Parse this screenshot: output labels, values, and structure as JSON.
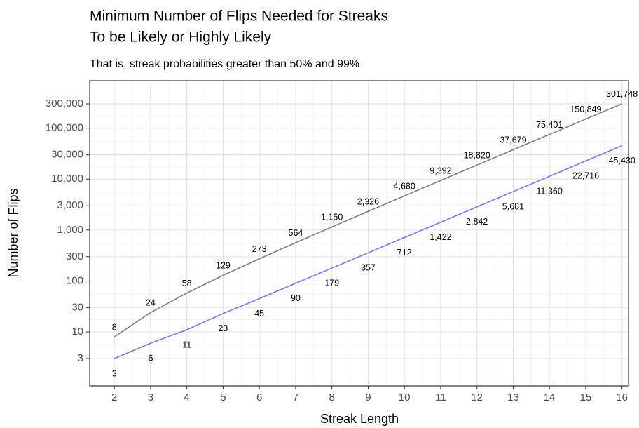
{
  "chart_data": {
    "type": "line",
    "title": [
      "Minimum Number of Flips Needed for Streaks",
      "To be Likely or Highly Likely"
    ],
    "subtitle": "That is, streak probabilities greater than 50% and 99%",
    "x_label": "Streak Length",
    "y_label": "Number of Flips",
    "x": [
      2,
      3,
      4,
      5,
      6,
      7,
      8,
      9,
      10,
      11,
      12,
      13,
      14,
      15,
      16
    ],
    "series": [
      {
        "color": "#7f7f7f",
        "label_side": "above",
        "values": [
          8,
          24,
          58,
          129,
          273,
          564,
          1150,
          2326,
          4680,
          9392,
          18820,
          37679,
          75401,
          150849,
          301748
        ],
        "value_labels": [
          "8",
          "24",
          "58",
          "129",
          "273",
          "564",
          "1,150",
          "2,326",
          "4,680",
          "9,392",
          "18,820",
          "37,679",
          "75,401",
          "150,849",
          "301,748"
        ]
      },
      {
        "color": "#7878f0",
        "label_side": "below",
        "values": [
          3,
          6,
          11,
          23,
          45,
          90,
          179,
          357,
          712,
          1422,
          2842,
          5681,
          11360,
          22716,
          45430
        ],
        "value_labels": [
          "3",
          "6",
          "11",
          "23",
          "45",
          "90",
          "179",
          "357",
          "712",
          "1,422",
          "2,842",
          "5,681",
          "11,360",
          "22,716",
          "45,430"
        ]
      }
    ],
    "xlim": [
      1.32,
      16.18
    ],
    "xticks": [
      2,
      3,
      4,
      5,
      6,
      7,
      8,
      9,
      10,
      11,
      12,
      13,
      14,
      15,
      16
    ],
    "ylim": [
      0.87,
      855000
    ],
    "log_y": true,
    "yticks": [
      3,
      10,
      30,
      100,
      300,
      {
        "value": 1000,
        "label": "1,000"
      },
      {
        "value": 3000,
        "label": "3,000"
      },
      {
        "value": 10000,
        "label": "10,000"
      },
      {
        "value": 30000,
        "label": "30,000"
      },
      {
        "value": 100000,
        "label": "100,000"
      },
      {
        "value": 300000,
        "label": "300,000"
      }
    ],
    "grid": true
  }
}
